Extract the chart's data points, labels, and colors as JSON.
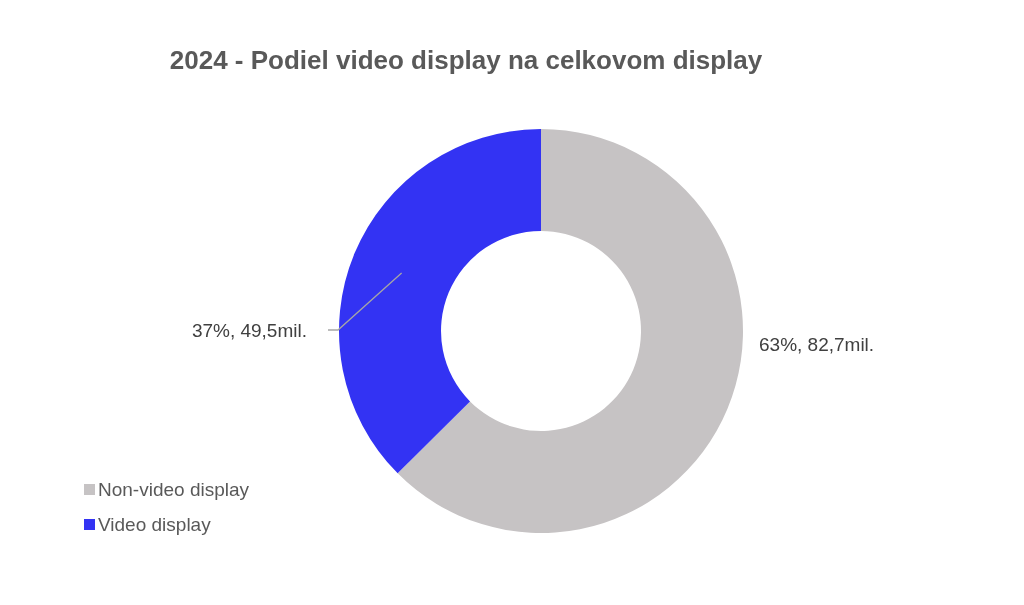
{
  "chart_data": {
    "type": "donut",
    "title": "2024 - Podiel video display na celkovom display",
    "categories": [
      "Non-video display",
      "Video display"
    ],
    "values": [
      82.7,
      49.5
    ],
    "colors": [
      "#c6c3c4",
      "#3333f3"
    ],
    "value_labels": [
      "63%, 82,7mil.",
      "37%, 49,5mil."
    ],
    "legend": "bottom left"
  }
}
